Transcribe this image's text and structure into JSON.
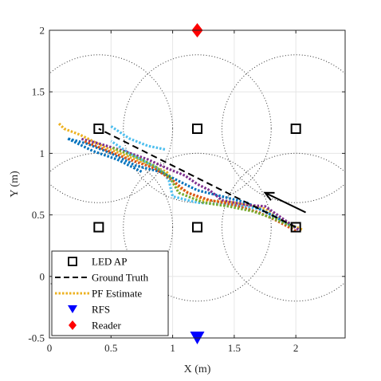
{
  "chart_data": {
    "type": "scatter",
    "title": "",
    "xlabel": "X (m)",
    "ylabel": "Y (m)",
    "xlim": [
      0,
      2.4
    ],
    "ylim": [
      -0.5,
      2
    ],
    "xticks": [
      0,
      0.5,
      1,
      1.5,
      2
    ],
    "xtick_labels": [
      "0",
      "0.5",
      "1",
      "1.5",
      "2"
    ],
    "yticks": [
      -0.5,
      0,
      0.5,
      1,
      1.5,
      2
    ],
    "ytick_labels": [
      "-0.5",
      "0",
      "0.5",
      "1",
      "1.5",
      "2"
    ],
    "grid": true,
    "legend_position": "bottom-left",
    "led_ap": {
      "name": "LED AP",
      "points": [
        [
          0.4,
          1.2
        ],
        [
          1.2,
          1.2
        ],
        [
          2.0,
          1.2
        ],
        [
          0.4,
          0.4
        ],
        [
          1.2,
          0.4
        ],
        [
          2.0,
          0.4
        ]
      ],
      "color": "#000000"
    },
    "coverage_circles": {
      "radius": 0.6,
      "centers": [
        [
          0.4,
          1.2
        ],
        [
          1.2,
          1.2
        ],
        [
          2.0,
          1.2
        ],
        [
          0.4,
          0.4
        ],
        [
          1.2,
          0.4
        ],
        [
          2.0,
          0.4
        ]
      ],
      "color": "#333333"
    },
    "ground_truth": {
      "name": "Ground Truth",
      "color": "#000000",
      "points": [
        [
          2.0,
          0.4
        ],
        [
          0.4,
          1.2
        ]
      ]
    },
    "pf_estimates": {
      "name": "PF Estimate",
      "series": [
        {
          "color": "#EDB120",
          "points": [
            [
              2.05,
              0.38
            ],
            [
              1.9,
              0.45
            ],
            [
              1.75,
              0.55
            ],
            [
              1.5,
              0.6
            ],
            [
              1.25,
              0.62
            ],
            [
              1.05,
              0.72
            ],
            [
              0.95,
              0.85
            ],
            [
              0.7,
              0.95
            ],
            [
              0.45,
              1.05
            ],
            [
              0.25,
              1.15
            ],
            [
              0.12,
              1.2
            ],
            [
              0.07,
              1.25
            ]
          ]
        },
        {
          "color": "#4DBEEE",
          "points": [
            [
              2.0,
              0.4
            ],
            [
              1.85,
              0.48
            ],
            [
              1.7,
              0.55
            ],
            [
              1.5,
              0.58
            ],
            [
              1.2,
              0.6
            ],
            [
              1.0,
              0.65
            ],
            [
              0.97,
              0.78
            ],
            [
              0.92,
              0.85
            ],
            [
              0.8,
              0.92
            ],
            [
              0.65,
              1.0
            ],
            [
              0.5,
              1.1
            ]
          ]
        },
        {
          "color": "#0072BD",
          "points": [
            [
              1.95,
              0.42
            ],
            [
              1.8,
              0.5
            ],
            [
              1.6,
              0.6
            ],
            [
              1.4,
              0.65
            ],
            [
              1.2,
              0.7
            ],
            [
              1.0,
              0.8
            ],
            [
              0.9,
              0.85
            ],
            [
              0.7,
              0.9
            ],
            [
              0.5,
              1.0
            ],
            [
              0.3,
              1.08
            ],
            [
              0.15,
              1.12
            ]
          ]
        },
        {
          "color": "#7E2F8E",
          "points": [
            [
              2.02,
              0.38
            ],
            [
              1.85,
              0.5
            ],
            [
              1.75,
              0.57
            ],
            [
              1.6,
              0.58
            ],
            [
              1.4,
              0.62
            ],
            [
              1.3,
              0.7
            ],
            [
              1.2,
              0.75
            ],
            [
              1.1,
              0.82
            ],
            [
              0.95,
              0.88
            ],
            [
              0.8,
              0.95
            ],
            [
              0.6,
              1.02
            ],
            [
              0.4,
              1.08
            ],
            [
              0.25,
              1.12
            ]
          ]
        },
        {
          "color": "#D95319",
          "points": [
            [
              2.0,
              0.37
            ],
            [
              1.85,
              0.45
            ],
            [
              1.7,
              0.52
            ],
            [
              1.5,
              0.58
            ],
            [
              1.3,
              0.62
            ],
            [
              1.12,
              0.68
            ],
            [
              1.0,
              0.78
            ],
            [
              0.85,
              0.88
            ],
            [
              0.65,
              0.95
            ],
            [
              0.45,
              1.03
            ],
            [
              0.28,
              1.1
            ]
          ]
        },
        {
          "color": "#77AC30",
          "points": [
            [
              1.98,
              0.4
            ],
            [
              1.82,
              0.47
            ],
            [
              1.65,
              0.53
            ],
            [
              1.45,
              0.57
            ],
            [
              1.25,
              0.6
            ],
            [
              1.05,
              0.68
            ],
            [
              0.98,
              0.8
            ],
            [
              0.85,
              0.9
            ],
            [
              0.7,
              0.97
            ],
            [
              0.5,
              1.05
            ]
          ]
        },
        {
          "color": "#4DBEEE",
          "points": [
            [
              0.5,
              1.22
            ],
            [
              0.65,
              1.12
            ],
            [
              0.8,
              1.06
            ],
            [
              0.95,
              1.03
            ]
          ]
        },
        {
          "color": "#0072BD",
          "points": [
            [
              0.15,
              1.12
            ],
            [
              0.35,
              1.02
            ],
            [
              0.55,
              0.95
            ],
            [
              0.75,
              0.85
            ]
          ]
        }
      ]
    },
    "rfs": {
      "name": "RFS",
      "points": [
        [
          1.2,
          -0.5
        ]
      ],
      "color": "#0000FF"
    },
    "reader": {
      "name": "Reader",
      "points": [
        [
          1.2,
          2.0
        ]
      ],
      "color": "#FF0000"
    },
    "direction_arrow": {
      "from": [
        2.08,
        0.52
      ],
      "to": [
        1.75,
        0.68
      ],
      "color": "#000000"
    },
    "legend": [
      {
        "label": "LED AP",
        "marker": "square"
      },
      {
        "label": "Ground Truth",
        "marker": "dashed-line"
      },
      {
        "label": "PF Estimate",
        "marker": "dotted-line"
      },
      {
        "label": "RFS",
        "marker": "triangle-down"
      },
      {
        "label": "Reader",
        "marker": "diamond"
      }
    ]
  }
}
